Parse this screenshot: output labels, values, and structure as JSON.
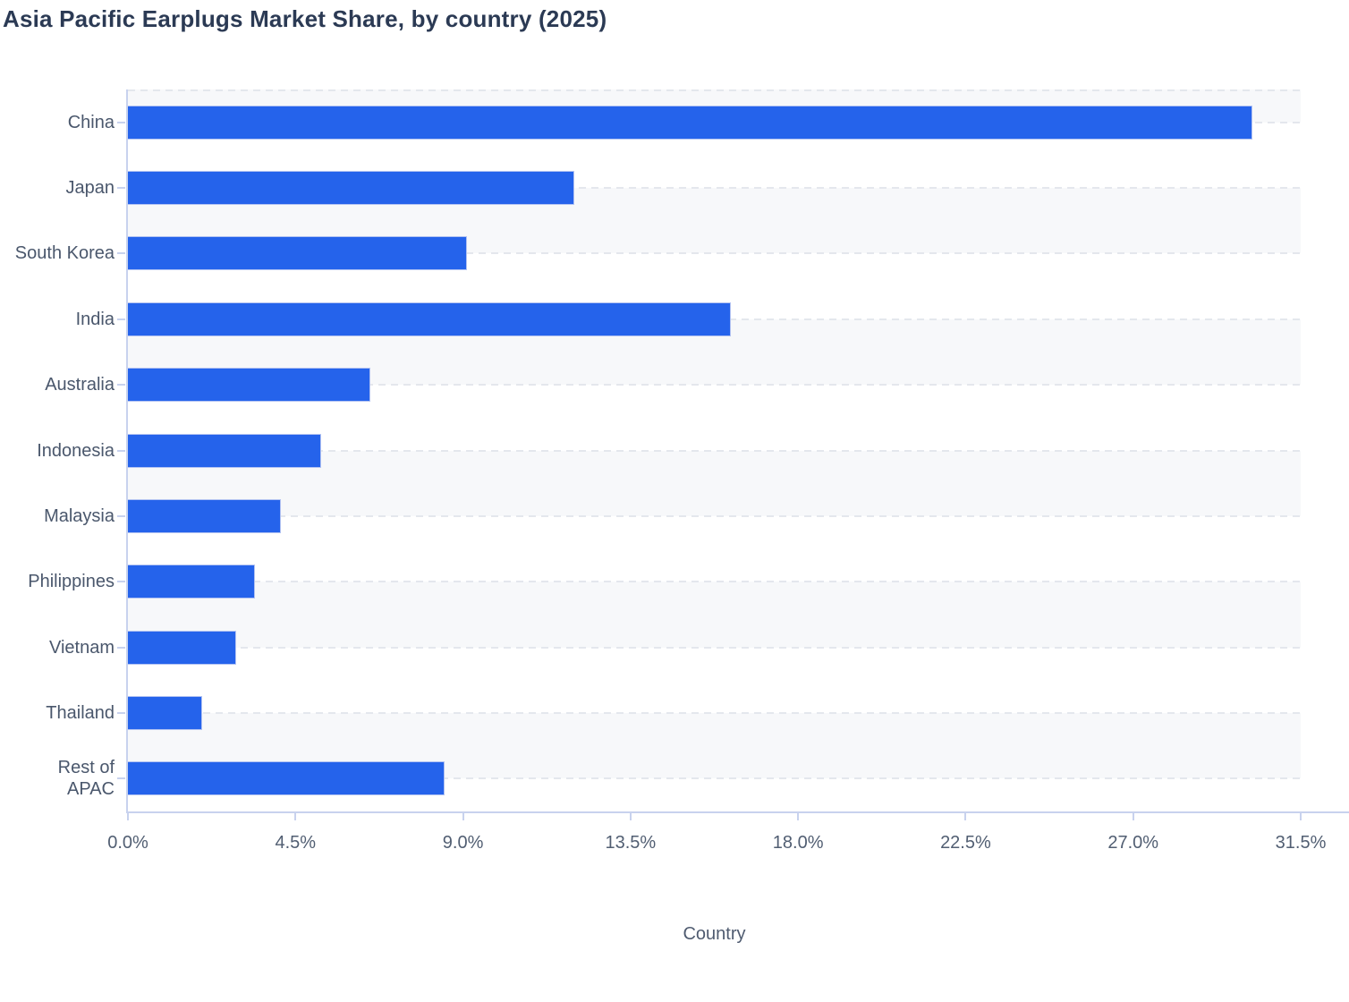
{
  "page": {
    "title": "Asia Pacific Earplugs Market Share, by country (2025)"
  },
  "chart_data": {
    "type": "bar",
    "orientation": "horizontal",
    "title": "Asia Pacific Earplugs Market Share, by country (2025)",
    "categories": [
      "China",
      "Japan",
      "South Korea",
      "India",
      "Australia",
      "Indonesia",
      "Malaysia",
      "Philippines",
      "Vietnam",
      "Thailand",
      "Rest of APAC"
    ],
    "category_display_labels": [
      "China",
      "Japan",
      "South Korea",
      "India",
      "Australia",
      "Indonesia",
      "Malaysia",
      "Philippines",
      "Vietnam",
      "Thailand",
      "Rest of\nAPAC"
    ],
    "values": [
      30.2,
      12.0,
      9.1,
      16.2,
      6.5,
      5.2,
      4.1,
      3.4,
      2.9,
      2.0,
      8.5
    ],
    "unit": "%",
    "xlabel": "Country",
    "ylabel": "",
    "xlim": [
      0,
      31.5
    ],
    "x_ticks": [
      0,
      4.5,
      9,
      13.5,
      18,
      22.5,
      27,
      31.5
    ],
    "x_tick_labels": [
      "0.0%",
      "4.5%",
      "9.0%",
      "13.5%",
      "18.0%",
      "22.5%",
      "27.0%",
      "31.5%"
    ],
    "grid": "dashed horizontal lines at category centers, alternating row bands",
    "legend": "none",
    "colors": {
      "bar": "#2563eb",
      "bar_edge": "#b3c3f2",
      "band": "#f7f8fa",
      "gridline": "#e4e7ed",
      "axis_line": "#c8d2ee",
      "tick_label": "#515e72",
      "category_label": "#4a576c",
      "title": "#2b3a54"
    }
  }
}
